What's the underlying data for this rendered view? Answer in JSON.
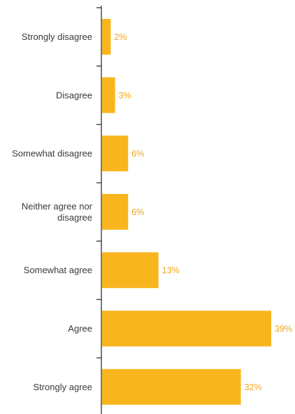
{
  "colors": {
    "bar": "#F8B51E",
    "label_text": "#F0A818",
    "axis": "#404040",
    "category_text": "#3a3a3a"
  },
  "chart_data": {
    "type": "bar",
    "orientation": "horizontal",
    "title": "",
    "xlabel": "",
    "ylabel": "",
    "categories": [
      "Strongly disagree",
      "Disagree",
      "Somewhat disagree",
      "Neither agree nor disagree",
      "Somewhat agree",
      "Agree",
      "Strongly agree"
    ],
    "values": [
      2,
      3,
      6,
      6,
      13,
      39,
      32
    ],
    "data_labels": [
      "2%",
      "3%",
      "6%",
      "6%",
      "13%",
      "39%",
      "32%"
    ],
    "value_unit": "%",
    "xlim": [
      0,
      39
    ],
    "grid": false,
    "legend": "none"
  }
}
